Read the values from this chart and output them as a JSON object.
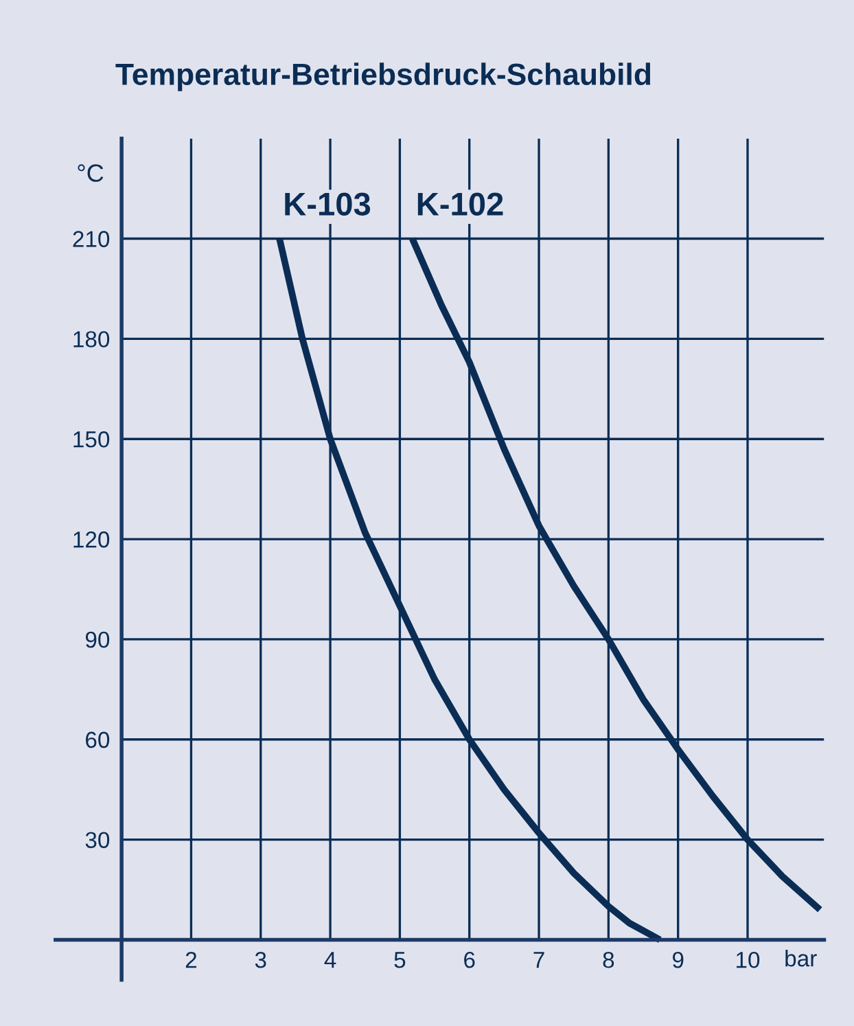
{
  "chart_data": {
    "type": "line",
    "title": "Temperatur-Betriebsdruck-Schaubild",
    "xlabel": "bar",
    "ylabel": "°C",
    "xlim": [
      0.05,
      11.1
    ],
    "ylim": [
      -12,
      240
    ],
    "xticks": [
      2,
      3,
      4,
      5,
      6,
      7,
      8,
      9,
      10
    ],
    "yticks": [
      30,
      60,
      90,
      120,
      150,
      180,
      210
    ],
    "grid": true,
    "legend": false,
    "marker": "none",
    "line_style": "solid",
    "series": [
      {
        "name": "K-103",
        "color": "#0b2d55",
        "x": [
          3.27,
          3.6,
          4,
          4.5,
          5,
          5.5,
          6,
          6.5,
          7,
          7.5,
          8,
          8.3,
          8.74
        ],
        "values": [
          210,
          180,
          150,
          122,
          100,
          78,
          60,
          45,
          32,
          20,
          10,
          5,
          0
        ]
      },
      {
        "name": "K-102",
        "color": "#0b2d55",
        "x": [
          5.18,
          5.6,
          6,
          6.5,
          7,
          7.5,
          8,
          8.5,
          9,
          9.5,
          10,
          10.5,
          11.04
        ],
        "values": [
          210,
          190,
          173,
          147,
          124,
          106,
          90,
          72,
          57,
          43,
          30,
          19,
          9
        ]
      }
    ]
  }
}
